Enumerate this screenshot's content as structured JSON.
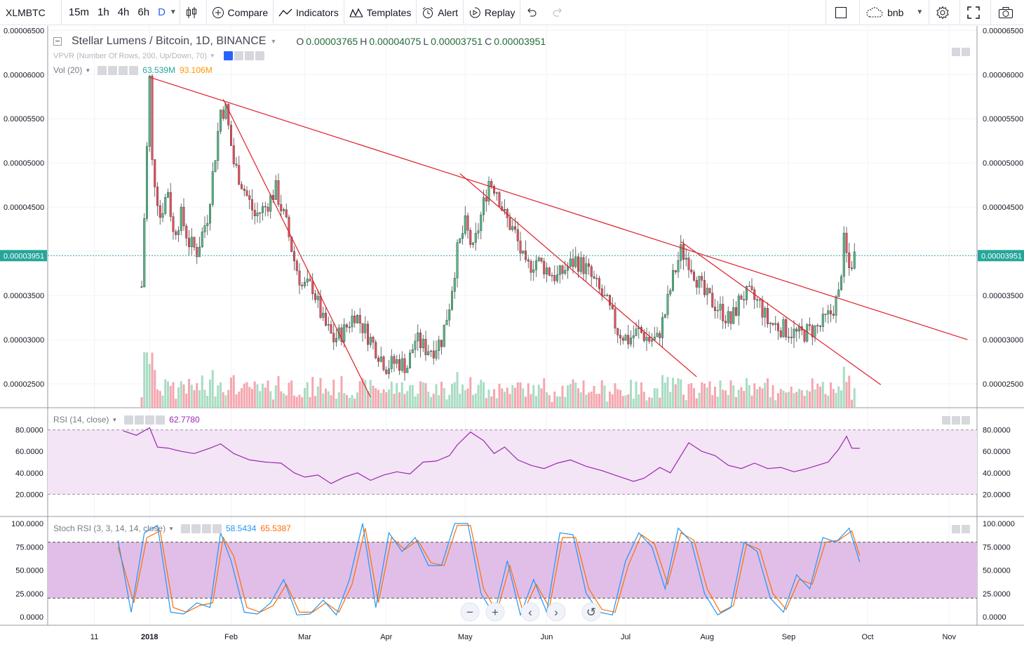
{
  "toolbar": {
    "symbol": "XLMBTC",
    "intervals": [
      "15m",
      "1h",
      "4h",
      "6h",
      "D"
    ],
    "active_interval": "D",
    "compare": "Compare",
    "indicators": "Indicators",
    "templates": "Templates",
    "alert": "Alert",
    "replay": "Replay",
    "layout_name": "bnb",
    "icons": [
      "chevron-down-icon",
      "candles-icon",
      "plus-circle-icon",
      "indicators-icon",
      "templates-icon",
      "alarm-clock-icon",
      "replay-icon",
      "undo-icon",
      "redo-icon",
      "square-icon",
      "cloud-icon",
      "gear-icon",
      "fullscreen-icon",
      "camera-icon"
    ]
  },
  "main_chart": {
    "title": "Stellar Lumens / Bitcoin, 1D, BINANCE",
    "ohlc": {
      "o_label": "O",
      "o": "0.00003765",
      "h_label": "H",
      "h": "0.00004075",
      "l_label": "L",
      "l": "0.00003751",
      "c_label": "C",
      "c": "0.00003951"
    },
    "vpvr_label": "VPVR (Number Of Rows, 200, Up/Down, 70)",
    "vol_label": "Vol (20)",
    "vol_value": "63.539M",
    "vol_ma_value": "93.106M",
    "last_price": "0.00003951",
    "price_ticks": [
      "0.00006500",
      "0.00006000",
      "0.00005500",
      "0.00005000",
      "0.00004500",
      "0.00003500",
      "0.00003000",
      "0.00002500"
    ]
  },
  "rsi": {
    "label": "RSI (14, close)",
    "value": "62.7780",
    "ticks": [
      "80.0000",
      "60.0000",
      "40.0000",
      "20.0000"
    ]
  },
  "stoch": {
    "label": "Stoch RSI (3, 3, 14, 14, close)",
    "k": "58.5434",
    "d": "65.5387",
    "ticks": [
      "100.0000",
      "75.0000",
      "50.0000",
      "25.0000",
      "0.0000"
    ]
  },
  "time_axis": [
    "11",
    "2018",
    "Feb",
    "Mar",
    "Apr",
    "May",
    "Jun",
    "Jul",
    "Aug",
    "Sep",
    "Oct",
    "Nov"
  ],
  "chart_data": {
    "type": "candlestick",
    "y_range": [
      2.23e-05,
      6.55e-05
    ],
    "trendlines": [
      {
        "from": [
          "2018-01-01",
          5.97e-05
        ],
        "to": [
          "2018-11-08",
          3e-05
        ]
      },
      {
        "from": [
          "2018-01-29",
          5.72e-05
        ],
        "to": [
          "2018-03-26",
          2.35e-05
        ]
      },
      {
        "from": [
          "2018-04-29",
          4.88e-05
        ],
        "to": [
          "2018-07-28",
          2.58e-05
        ]
      },
      {
        "from": [
          "2018-07-22",
          4.11e-05
        ],
        "to": [
          "2018-10-06",
          2.49e-05
        ]
      }
    ],
    "close_path": [
      [
        "2017-12-29",
        3.6e-05
      ],
      [
        "2018-01-01",
        5.95e-05
      ],
      [
        "2018-01-02",
        5e-05
      ],
      [
        "2018-01-05",
        4.4e-05
      ],
      [
        "2018-01-08",
        4.7e-05
      ],
      [
        "2018-01-10",
        4.2e-05
      ],
      [
        "2018-01-13",
        4.4e-05
      ],
      [
        "2018-01-16",
        4.1e-05
      ],
      [
        "2018-01-19",
        4e-05
      ],
      [
        "2018-01-23",
        4.4e-05
      ],
      [
        "2018-01-26",
        5.1e-05
      ],
      [
        "2018-01-28",
        5.6e-05
      ],
      [
        "2018-01-30",
        5.6e-05
      ],
      [
        "2018-02-02",
        5e-05
      ],
      [
        "2018-02-06",
        4.7e-05
      ],
      [
        "2018-02-10",
        4.4e-05
      ],
      [
        "2018-02-14",
        4.5e-05
      ],
      [
        "2018-02-18",
        4.7e-05
      ],
      [
        "2018-02-22",
        4.3e-05
      ],
      [
        "2018-02-25",
        3.9e-05
      ],
      [
        "2018-02-28",
        3.6e-05
      ],
      [
        "2018-03-04",
        3.6e-05
      ],
      [
        "2018-03-08",
        3.2e-05
      ],
      [
        "2018-03-12",
        3e-05
      ],
      [
        "2018-03-16",
        3.1e-05
      ],
      [
        "2018-03-20",
        3.3e-05
      ],
      [
        "2018-03-24",
        3.1e-05
      ],
      [
        "2018-03-28",
        2.9e-05
      ],
      [
        "2018-04-01",
        2.7e-05
      ],
      [
        "2018-04-05",
        2.75e-05
      ],
      [
        "2018-04-09",
        2.7e-05
      ],
      [
        "2018-04-12",
        3e-05
      ],
      [
        "2018-04-16",
        2.9e-05
      ],
      [
        "2018-04-19",
        2.9e-05
      ],
      [
        "2018-04-22",
        3e-05
      ],
      [
        "2018-04-25",
        3.4e-05
      ],
      [
        "2018-04-28",
        4e-05
      ],
      [
        "2018-05-01",
        4.3e-05
      ],
      [
        "2018-05-04",
        4e-05
      ],
      [
        "2018-05-07",
        4.4e-05
      ],
      [
        "2018-05-10",
        4.8e-05
      ],
      [
        "2018-05-13",
        4.7e-05
      ],
      [
        "2018-05-16",
        4.4e-05
      ],
      [
        "2018-05-20",
        4.2e-05
      ],
      [
        "2018-05-24",
        3.8e-05
      ],
      [
        "2018-05-28",
        3.9e-05
      ],
      [
        "2018-06-01",
        3.8e-05
      ],
      [
        "2018-06-05",
        3.7e-05
      ],
      [
        "2018-06-08",
        3.8e-05
      ],
      [
        "2018-06-12",
        3.9e-05
      ],
      [
        "2018-06-16",
        3.8e-05
      ],
      [
        "2018-06-20",
        3.6e-05
      ],
      [
        "2018-06-24",
        3.4e-05
      ],
      [
        "2018-06-28",
        3.1e-05
      ],
      [
        "2018-07-02",
        3e-05
      ],
      [
        "2018-07-06",
        3.1e-05
      ],
      [
        "2018-07-10",
        3e-05
      ],
      [
        "2018-07-13",
        3e-05
      ],
      [
        "2018-07-16",
        3.3e-05
      ],
      [
        "2018-07-19",
        3.7e-05
      ],
      [
        "2018-07-22",
        4e-05
      ],
      [
        "2018-07-25",
        3.9e-05
      ],
      [
        "2018-07-28",
        3.7e-05
      ],
      [
        "2018-07-31",
        3.5e-05
      ],
      [
        "2018-08-04",
        3.4e-05
      ],
      [
        "2018-08-07",
        3.3e-05
      ],
      [
        "2018-08-10",
        3.2e-05
      ],
      [
        "2018-08-14",
        3.5e-05
      ],
      [
        "2018-08-17",
        3.5e-05
      ],
      [
        "2018-08-21",
        3.4e-05
      ],
      [
        "2018-08-24",
        3.2e-05
      ],
      [
        "2018-08-28",
        3.15e-05
      ],
      [
        "2018-09-01",
        3.1e-05
      ],
      [
        "2018-09-05",
        3.05e-05
      ],
      [
        "2018-09-09",
        3.1e-05
      ],
      [
        "2018-09-13",
        3.15e-05
      ],
      [
        "2018-09-17",
        3.3e-05
      ],
      [
        "2018-09-20",
        3.5e-05
      ],
      [
        "2018-09-22",
        4.1e-05
      ],
      [
        "2018-09-24",
        3.8e-05
      ],
      [
        "2018-09-26",
        3.95e-05
      ]
    ],
    "rsi_path": [
      [
        "2017-12-22",
        79
      ],
      [
        "2017-12-27",
        75
      ],
      [
        "2018-01-01",
        82
      ],
      [
        "2018-01-04",
        64
      ],
      [
        "2018-01-08",
        63
      ],
      [
        "2018-01-13",
        60
      ],
      [
        "2018-01-18",
        58
      ],
      [
        "2018-01-24",
        63
      ],
      [
        "2018-01-28",
        67
      ],
      [
        "2018-02-02",
        58
      ],
      [
        "2018-02-08",
        52
      ],
      [
        "2018-02-14",
        50
      ],
      [
        "2018-02-20",
        49
      ],
      [
        "2018-02-25",
        40
      ],
      [
        "2018-03-01",
        36
      ],
      [
        "2018-03-06",
        38
      ],
      [
        "2018-03-11",
        30
      ],
      [
        "2018-03-16",
        36
      ],
      [
        "2018-03-21",
        40
      ],
      [
        "2018-03-26",
        33
      ],
      [
        "2018-03-31",
        38
      ],
      [
        "2018-04-05",
        41
      ],
      [
        "2018-04-10",
        39
      ],
      [
        "2018-04-15",
        50
      ],
      [
        "2018-04-20",
        51
      ],
      [
        "2018-04-25",
        56
      ],
      [
        "2018-04-28",
        66
      ],
      [
        "2018-05-03",
        78
      ],
      [
        "2018-05-08",
        70
      ],
      [
        "2018-05-12",
        58
      ],
      [
        "2018-05-16",
        64
      ],
      [
        "2018-05-21",
        52
      ],
      [
        "2018-05-26",
        47
      ],
      [
        "2018-05-31",
        44
      ],
      [
        "2018-06-05",
        49
      ],
      [
        "2018-06-10",
        52
      ],
      [
        "2018-06-16",
        46
      ],
      [
        "2018-06-22",
        42
      ],
      [
        "2018-06-28",
        37
      ],
      [
        "2018-07-04",
        32
      ],
      [
        "2018-07-08",
        35
      ],
      [
        "2018-07-14",
        45
      ],
      [
        "2018-07-18",
        40
      ],
      [
        "2018-07-22",
        56
      ],
      [
        "2018-07-25",
        68
      ],
      [
        "2018-07-30",
        60
      ],
      [
        "2018-08-04",
        56
      ],
      [
        "2018-08-09",
        47
      ],
      [
        "2018-08-14",
        44
      ],
      [
        "2018-08-19",
        49
      ],
      [
        "2018-08-24",
        44
      ],
      [
        "2018-08-29",
        45
      ],
      [
        "2018-09-03",
        41
      ],
      [
        "2018-09-08",
        44
      ],
      [
        "2018-09-12",
        47
      ],
      [
        "2018-09-16",
        50
      ],
      [
        "2018-09-20",
        62
      ],
      [
        "2018-09-23",
        74
      ],
      [
        "2018-09-25",
        63
      ],
      [
        "2018-09-28",
        62.78
      ]
    ],
    "stoch_k": [
      [
        "2017-12-20",
        82
      ],
      [
        "2017-12-25",
        5
      ],
      [
        "2017-12-30",
        90
      ],
      [
        "2018-01-04",
        98
      ],
      [
        "2018-01-09",
        5
      ],
      [
        "2018-01-14",
        3
      ],
      [
        "2018-01-19",
        15
      ],
      [
        "2018-01-24",
        10
      ],
      [
        "2018-01-28",
        90
      ],
      [
        "2018-02-01",
        60
      ],
      [
        "2018-02-06",
        5
      ],
      [
        "2018-02-11",
        3
      ],
      [
        "2018-02-16",
        15
      ],
      [
        "2018-02-21",
        40
      ],
      [
        "2018-02-26",
        2
      ],
      [
        "2018-03-03",
        3
      ],
      [
        "2018-03-08",
        18
      ],
      [
        "2018-03-13",
        2
      ],
      [
        "2018-03-18",
        40
      ],
      [
        "2018-03-23",
        100
      ],
      [
        "2018-03-28",
        10
      ],
      [
        "2018-04-02",
        90
      ],
      [
        "2018-04-07",
        70
      ],
      [
        "2018-04-12",
        85
      ],
      [
        "2018-04-17",
        55
      ],
      [
        "2018-04-22",
        55
      ],
      [
        "2018-04-27",
        100
      ],
      [
        "2018-05-02",
        100
      ],
      [
        "2018-05-07",
        25
      ],
      [
        "2018-05-12",
        2
      ],
      [
        "2018-05-17",
        60
      ],
      [
        "2018-05-22",
        2
      ],
      [
        "2018-05-27",
        40
      ],
      [
        "2018-06-01",
        5
      ],
      [
        "2018-06-06",
        90
      ],
      [
        "2018-06-11",
        88
      ],
      [
        "2018-06-16",
        25
      ],
      [
        "2018-06-21",
        5
      ],
      [
        "2018-06-26",
        2
      ],
      [
        "2018-07-01",
        60
      ],
      [
        "2018-07-06",
        90
      ],
      [
        "2018-07-11",
        75
      ],
      [
        "2018-07-16",
        30
      ],
      [
        "2018-07-21",
        95
      ],
      [
        "2018-07-26",
        80
      ],
      [
        "2018-07-31",
        25
      ],
      [
        "2018-08-05",
        2
      ],
      [
        "2018-08-10",
        10
      ],
      [
        "2018-08-15",
        80
      ],
      [
        "2018-08-20",
        70
      ],
      [
        "2018-08-25",
        20
      ],
      [
        "2018-08-30",
        5
      ],
      [
        "2018-09-04",
        45
      ],
      [
        "2018-09-09",
        30
      ],
      [
        "2018-09-14",
        85
      ],
      [
        "2018-09-19",
        80
      ],
      [
        "2018-09-24",
        95
      ],
      [
        "2018-09-28",
        58.54
      ]
    ],
    "stoch_d": [
      [
        "2017-12-20",
        75
      ],
      [
        "2017-12-26",
        15
      ],
      [
        "2017-12-31",
        85
      ],
      [
        "2018-01-05",
        92
      ],
      [
        "2018-01-10",
        10
      ],
      [
        "2018-01-15",
        5
      ],
      [
        "2018-01-20",
        12
      ],
      [
        "2018-01-25",
        15
      ],
      [
        "2018-01-29",
        85
      ],
      [
        "2018-02-02",
        65
      ],
      [
        "2018-02-07",
        10
      ],
      [
        "2018-02-12",
        5
      ],
      [
        "2018-02-17",
        12
      ],
      [
        "2018-02-22",
        35
      ],
      [
        "2018-02-27",
        5
      ],
      [
        "2018-03-04",
        5
      ],
      [
        "2018-03-09",
        15
      ],
      [
        "2018-03-14",
        5
      ],
      [
        "2018-03-19",
        35
      ],
      [
        "2018-03-24",
        95
      ],
      [
        "2018-03-29",
        15
      ],
      [
        "2018-04-03",
        85
      ],
      [
        "2018-04-08",
        72
      ],
      [
        "2018-04-13",
        82
      ],
      [
        "2018-04-18",
        58
      ],
      [
        "2018-04-23",
        55
      ],
      [
        "2018-04-28",
        98
      ],
      [
        "2018-05-03",
        98
      ],
      [
        "2018-05-08",
        30
      ],
      [
        "2018-05-13",
        5
      ],
      [
        "2018-05-18",
        55
      ],
      [
        "2018-05-23",
        5
      ],
      [
        "2018-05-28",
        35
      ],
      [
        "2018-06-02",
        10
      ],
      [
        "2018-06-07",
        85
      ],
      [
        "2018-06-12",
        85
      ],
      [
        "2018-06-17",
        30
      ],
      [
        "2018-06-22",
        8
      ],
      [
        "2018-06-27",
        5
      ],
      [
        "2018-07-02",
        55
      ],
      [
        "2018-07-07",
        88
      ],
      [
        "2018-07-12",
        78
      ],
      [
        "2018-07-17",
        35
      ],
      [
        "2018-07-22",
        90
      ],
      [
        "2018-07-27",
        82
      ],
      [
        "2018-08-01",
        30
      ],
      [
        "2018-08-06",
        5
      ],
      [
        "2018-08-11",
        12
      ],
      [
        "2018-08-16",
        78
      ],
      [
        "2018-08-21",
        72
      ],
      [
        "2018-08-26",
        25
      ],
      [
        "2018-08-31",
        8
      ],
      [
        "2018-09-05",
        40
      ],
      [
        "2018-09-10",
        35
      ],
      [
        "2018-09-15",
        80
      ],
      [
        "2018-09-20",
        82
      ],
      [
        "2018-09-25",
        92
      ],
      [
        "2018-09-28",
        65.54
      ]
    ]
  },
  "colors": {
    "up": "#53b987",
    "down": "#eb4d5c",
    "vol_up": "#a9dcc3",
    "vol_down": "#f5a6ae",
    "trend": "#e11e29",
    "rsi": "#9c27b0",
    "rsi_band": "#f3e5f5",
    "stoch_band": "#e1bee7",
    "stoch_k": "#2196f3",
    "stoch_d": "#ff6d00"
  }
}
